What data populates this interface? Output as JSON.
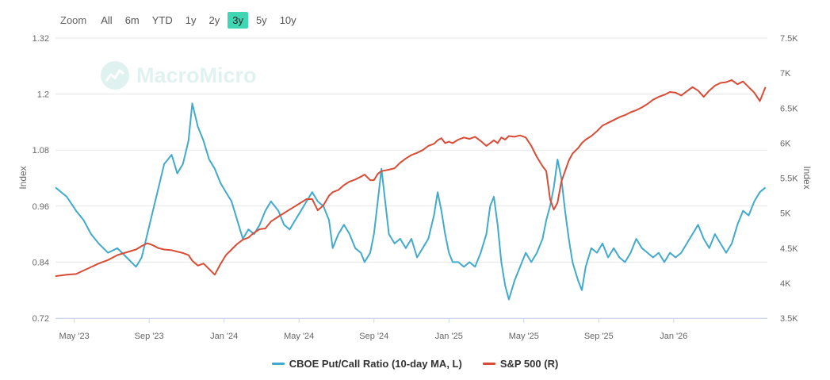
{
  "toolbar": {
    "zoom_label": "Zoom",
    "ranges": [
      "All",
      "6m",
      "YTD",
      "1y",
      "2y",
      "3y",
      "5y",
      "10y"
    ],
    "active_range": "3y"
  },
  "watermark": "MacroMicro",
  "colors": {
    "series_left": "#41aacd",
    "series_right": "#d84c36",
    "active_zoom": "#3fd6b3"
  },
  "chart_data": {
    "type": "line",
    "title": "",
    "x_labels": [
      "May '23",
      "Sep '23",
      "Jan '24",
      "May '24",
      "Sep '24",
      "Jan '25",
      "May '25",
      "Sep '25",
      "Jan '26"
    ],
    "x_range": [
      "2023-04",
      "2026-03"
    ],
    "left_axis": {
      "label": "Index",
      "ticks": [
        "0.72",
        "0.84",
        "0.96",
        "1.08",
        "1.2",
        "1.32"
      ],
      "range": [
        0.72,
        1.32
      ]
    },
    "right_axis": {
      "label": "Index",
      "ticks": [
        "3.5K",
        "4K",
        "4.5K",
        "5K",
        "5.5K",
        "6K",
        "6.5K",
        "7K",
        "7.5K"
      ],
      "range": [
        3500,
        7500
      ]
    },
    "series": [
      {
        "name": "CBOE Put/Call Ratio (10-day MA, L)",
        "axis": "left",
        "points": [
          [
            0.0,
            1.0
          ],
          [
            0.6,
            0.98
          ],
          [
            1.1,
            0.95
          ],
          [
            1.5,
            0.93
          ],
          [
            1.9,
            0.9
          ],
          [
            2.3,
            0.88
          ],
          [
            2.8,
            0.86
          ],
          [
            3.3,
            0.87
          ],
          [
            3.8,
            0.85
          ],
          [
            4.3,
            0.83
          ],
          [
            4.6,
            0.85
          ],
          [
            4.9,
            0.9
          ],
          [
            5.2,
            0.95
          ],
          [
            5.5,
            1.0
          ],
          [
            5.8,
            1.05
          ],
          [
            6.2,
            1.07
          ],
          [
            6.5,
            1.03
          ],
          [
            6.8,
            1.05
          ],
          [
            7.1,
            1.1
          ],
          [
            7.3,
            1.18
          ],
          [
            7.6,
            1.13
          ],
          [
            7.9,
            1.1
          ],
          [
            8.2,
            1.06
          ],
          [
            8.5,
            1.04
          ],
          [
            8.8,
            1.01
          ],
          [
            9.1,
            0.99
          ],
          [
            9.4,
            0.97
          ],
          [
            9.7,
            0.93
          ],
          [
            10.0,
            0.89
          ],
          [
            10.3,
            0.91
          ],
          [
            10.6,
            0.9
          ],
          [
            10.9,
            0.92
          ],
          [
            11.2,
            0.95
          ],
          [
            11.5,
            0.97
          ],
          [
            11.9,
            0.95
          ],
          [
            12.2,
            0.92
          ],
          [
            12.5,
            0.91
          ],
          [
            12.8,
            0.93
          ],
          [
            13.1,
            0.95
          ],
          [
            13.4,
            0.97
          ],
          [
            13.7,
            0.99
          ],
          [
            14.0,
            0.97
          ],
          [
            14.3,
            0.96
          ],
          [
            14.6,
            0.93
          ],
          [
            14.8,
            0.87
          ],
          [
            15.1,
            0.9
          ],
          [
            15.4,
            0.92
          ],
          [
            15.7,
            0.9
          ],
          [
            16.0,
            0.87
          ],
          [
            16.3,
            0.86
          ],
          [
            16.5,
            0.84
          ],
          [
            16.8,
            0.86
          ],
          [
            17.0,
            0.9
          ],
          [
            17.2,
            0.97
          ],
          [
            17.4,
            1.04
          ],
          [
            17.6,
            0.97
          ],
          [
            17.8,
            0.9
          ],
          [
            18.1,
            0.88
          ],
          [
            18.4,
            0.89
          ],
          [
            18.7,
            0.87
          ],
          [
            19.0,
            0.89
          ],
          [
            19.3,
            0.85
          ],
          [
            19.6,
            0.87
          ],
          [
            19.9,
            0.89
          ],
          [
            20.2,
            0.94
          ],
          [
            20.4,
            0.99
          ],
          [
            20.6,
            0.95
          ],
          [
            20.8,
            0.9
          ],
          [
            21.0,
            0.86
          ],
          [
            21.2,
            0.84
          ],
          [
            21.5,
            0.84
          ],
          [
            21.8,
            0.83
          ],
          [
            22.1,
            0.84
          ],
          [
            22.4,
            0.83
          ],
          [
            22.7,
            0.86
          ],
          [
            23.0,
            0.9
          ],
          [
            23.2,
            0.96
          ],
          [
            23.4,
            0.98
          ],
          [
            23.6,
            0.92
          ],
          [
            23.8,
            0.84
          ],
          [
            24.0,
            0.79
          ],
          [
            24.2,
            0.76
          ],
          [
            24.5,
            0.8
          ],
          [
            24.8,
            0.83
          ],
          [
            25.1,
            0.86
          ],
          [
            25.4,
            0.84
          ],
          [
            25.7,
            0.86
          ],
          [
            26.0,
            0.89
          ],
          [
            26.2,
            0.93
          ],
          [
            26.4,
            0.96
          ],
          [
            26.6,
            1.0
          ],
          [
            26.8,
            1.06
          ],
          [
            27.0,
            1.02
          ],
          [
            27.2,
            0.95
          ],
          [
            27.4,
            0.89
          ],
          [
            27.6,
            0.84
          ],
          [
            27.9,
            0.8
          ],
          [
            28.1,
            0.78
          ],
          [
            28.3,
            0.83
          ],
          [
            28.6,
            0.87
          ],
          [
            28.9,
            0.86
          ],
          [
            29.2,
            0.88
          ],
          [
            29.5,
            0.85
          ],
          [
            29.8,
            0.87
          ],
          [
            30.1,
            0.85
          ],
          [
            30.4,
            0.84
          ],
          [
            30.7,
            0.86
          ],
          [
            31.0,
            0.89
          ],
          [
            31.3,
            0.87
          ],
          [
            31.6,
            0.86
          ],
          [
            31.9,
            0.85
          ],
          [
            32.2,
            0.86
          ],
          [
            32.5,
            0.84
          ],
          [
            32.8,
            0.86
          ],
          [
            33.1,
            0.85
          ],
          [
            33.4,
            0.86
          ],
          [
            33.7,
            0.88
          ],
          [
            34.0,
            0.9
          ],
          [
            34.3,
            0.92
          ],
          [
            34.6,
            0.89
          ],
          [
            34.9,
            0.87
          ],
          [
            35.2,
            0.9
          ],
          [
            35.5,
            0.88
          ],
          [
            35.8,
            0.86
          ],
          [
            36.1,
            0.88
          ],
          [
            36.4,
            0.92
          ],
          [
            36.7,
            0.95
          ],
          [
            37.0,
            0.94
          ],
          [
            37.3,
            0.97
          ],
          [
            37.6,
            0.99
          ],
          [
            37.9,
            1.0
          ]
        ]
      },
      {
        "name": "S&P 500 (R)",
        "axis": "right",
        "points": [
          [
            0.0,
            4100
          ],
          [
            0.6,
            4120
          ],
          [
            1.1,
            4130
          ],
          [
            1.5,
            4180
          ],
          [
            1.9,
            4230
          ],
          [
            2.3,
            4280
          ],
          [
            2.8,
            4330
          ],
          [
            3.3,
            4400
          ],
          [
            3.8,
            4440
          ],
          [
            4.3,
            4480
          ],
          [
            4.6,
            4530
          ],
          [
            4.9,
            4570
          ],
          [
            5.2,
            4540
          ],
          [
            5.5,
            4500
          ],
          [
            5.8,
            4480
          ],
          [
            6.2,
            4470
          ],
          [
            6.5,
            4450
          ],
          [
            6.8,
            4430
          ],
          [
            7.1,
            4400
          ],
          [
            7.3,
            4320
          ],
          [
            7.6,
            4250
          ],
          [
            7.9,
            4280
          ],
          [
            8.2,
            4200
          ],
          [
            8.5,
            4120
          ],
          [
            8.8,
            4270
          ],
          [
            9.1,
            4400
          ],
          [
            9.4,
            4480
          ],
          [
            9.7,
            4560
          ],
          [
            10.0,
            4620
          ],
          [
            10.3,
            4650
          ],
          [
            10.6,
            4720
          ],
          [
            10.9,
            4770
          ],
          [
            11.2,
            4780
          ],
          [
            11.5,
            4880
          ],
          [
            11.9,
            4950
          ],
          [
            12.2,
            5000
          ],
          [
            12.5,
            5050
          ],
          [
            12.8,
            5100
          ],
          [
            13.1,
            5150
          ],
          [
            13.4,
            5200
          ],
          [
            13.7,
            5200
          ],
          [
            14.0,
            5040
          ],
          [
            14.3,
            5110
          ],
          [
            14.6,
            5250
          ],
          [
            14.8,
            5300
          ],
          [
            15.1,
            5330
          ],
          [
            15.4,
            5400
          ],
          [
            15.7,
            5450
          ],
          [
            16.0,
            5480
          ],
          [
            16.3,
            5520
          ],
          [
            16.5,
            5550
          ],
          [
            16.8,
            5470
          ],
          [
            17.0,
            5470
          ],
          [
            17.2,
            5560
          ],
          [
            17.4,
            5600
          ],
          [
            17.6,
            5610
          ],
          [
            17.8,
            5620
          ],
          [
            18.1,
            5640
          ],
          [
            18.4,
            5720
          ],
          [
            18.7,
            5780
          ],
          [
            19.0,
            5830
          ],
          [
            19.3,
            5860
          ],
          [
            19.6,
            5900
          ],
          [
            19.9,
            5960
          ],
          [
            20.2,
            5990
          ],
          [
            20.4,
            6040
          ],
          [
            20.6,
            6070
          ],
          [
            20.8,
            6000
          ],
          [
            21.0,
            6020
          ],
          [
            21.2,
            6000
          ],
          [
            21.5,
            6050
          ],
          [
            21.8,
            6080
          ],
          [
            22.1,
            6060
          ],
          [
            22.4,
            6090
          ],
          [
            22.7,
            6030
          ],
          [
            23.0,
            5960
          ],
          [
            23.2,
            6000
          ],
          [
            23.4,
            6040
          ],
          [
            23.6,
            6000
          ],
          [
            23.8,
            6080
          ],
          [
            24.0,
            6050
          ],
          [
            24.2,
            6100
          ],
          [
            24.5,
            6090
          ],
          [
            24.8,
            6110
          ],
          [
            25.1,
            6080
          ],
          [
            25.4,
            5960
          ],
          [
            25.7,
            5800
          ],
          [
            26.0,
            5670
          ],
          [
            26.2,
            5600
          ],
          [
            26.4,
            5200
          ],
          [
            26.6,
            5050
          ],
          [
            26.8,
            5150
          ],
          [
            27.0,
            5450
          ],
          [
            27.2,
            5600
          ],
          [
            27.4,
            5750
          ],
          [
            27.6,
            5850
          ],
          [
            27.9,
            5930
          ],
          [
            28.1,
            6000
          ],
          [
            28.3,
            6050
          ],
          [
            28.6,
            6100
          ],
          [
            28.9,
            6170
          ],
          [
            29.2,
            6250
          ],
          [
            29.5,
            6290
          ],
          [
            29.8,
            6330
          ],
          [
            30.1,
            6370
          ],
          [
            30.4,
            6400
          ],
          [
            30.7,
            6440
          ],
          [
            31.0,
            6470
          ],
          [
            31.3,
            6510
          ],
          [
            31.6,
            6560
          ],
          [
            31.9,
            6620
          ],
          [
            32.2,
            6660
          ],
          [
            32.5,
            6690
          ],
          [
            32.8,
            6730
          ],
          [
            33.1,
            6720
          ],
          [
            33.4,
            6680
          ],
          [
            33.7,
            6740
          ],
          [
            34.0,
            6800
          ],
          [
            34.3,
            6750
          ],
          [
            34.6,
            6660
          ],
          [
            34.9,
            6750
          ],
          [
            35.2,
            6820
          ],
          [
            35.5,
            6860
          ],
          [
            35.8,
            6870
          ],
          [
            36.1,
            6900
          ],
          [
            36.4,
            6840
          ],
          [
            36.7,
            6880
          ],
          [
            37.0,
            6800
          ],
          [
            37.3,
            6720
          ],
          [
            37.6,
            6600
          ],
          [
            37.9,
            6800
          ]
        ]
      }
    ],
    "legend_position": "bottom-center",
    "grid": true
  }
}
